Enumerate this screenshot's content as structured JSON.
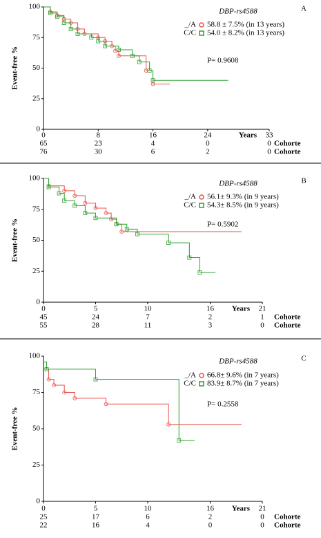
{
  "chart_data": [
    {
      "type": "step",
      "letter": "A",
      "title": "DBP-rs4588",
      "xlabel": "Years",
      "ylabel": "Event-free %",
      "pvalue": "P= 0.9608",
      "xlim": [
        0,
        33
      ],
      "xticks": [
        0,
        8,
        16,
        24,
        33
      ],
      "ylim": [
        0,
        100
      ],
      "yticks": [
        0,
        25,
        50,
        75,
        100
      ],
      "series": [
        {
          "name": "_/A",
          "color": "#e8504a",
          "legend_text": "58.8 ± 7.5% (in 13 years)",
          "risk_label": "Cohorte",
          "at_risk": [
            65,
            23,
            4,
            0,
            0
          ],
          "x": [
            0,
            1,
            2,
            3,
            4,
            5,
            6,
            8,
            9,
            10,
            10.5,
            11,
            15,
            16,
            18.5
          ],
          "values": [
            100,
            96,
            93,
            90,
            87,
            82,
            78,
            75,
            72,
            68,
            64,
            60,
            48,
            37,
            37
          ]
        },
        {
          "name": "C/C",
          "color": "#2ca02c",
          "legend_text": "54.0 ± 8.2% (in 13 years)",
          "risk_label": "Cohorte",
          "at_risk": [
            76,
            30,
            6,
            2,
            0
          ],
          "x": [
            0,
            1,
            2,
            3,
            4,
            5,
            7,
            8,
            9,
            11,
            13,
            14,
            15.5,
            16,
            27
          ],
          "values": [
            100,
            95,
            92,
            87,
            82,
            78,
            75,
            72,
            68,
            65,
            60,
            55,
            48,
            40,
            40
          ]
        }
      ]
    },
    {
      "type": "step",
      "letter": "B",
      "title": "DBP-rs4588",
      "xlabel": "Years",
      "ylabel": "Event-free %",
      "pvalue": "P= 0.5902",
      "xlim": [
        0,
        21
      ],
      "xticks": [
        0,
        5,
        10,
        16,
        21
      ],
      "ylim": [
        0,
        100
      ],
      "yticks": [
        0,
        25,
        50,
        75,
        100
      ],
      "series": [
        {
          "name": "_/A",
          "color": "#e8504a",
          "legend_text": "56.1± 9.3% (in 9 years)",
          "risk_label": "Cohorte",
          "at_risk": [
            45,
            24,
            7,
            2,
            1
          ],
          "x": [
            0,
            0.5,
            2,
            3,
            4,
            5,
            6,
            6.5,
            7,
            7.5,
            19
          ],
          "values": [
            100,
            94,
            90,
            86,
            80,
            76,
            72,
            67,
            63,
            57,
            57
          ]
        },
        {
          "name": "C/C",
          "color": "#2ca02c",
          "legend_text": "54.3± 8.5% (in 9 years)",
          "risk_label": "Cohorte",
          "at_risk": [
            55,
            28,
            11,
            3,
            0
          ],
          "x": [
            0,
            0.5,
            1.5,
            2,
            3,
            4,
            5,
            7,
            8,
            9,
            12,
            14,
            15,
            16.5
          ],
          "values": [
            100,
            93,
            88,
            82,
            78,
            72,
            68,
            63,
            59,
            55,
            48,
            36,
            24,
            24
          ]
        }
      ]
    },
    {
      "type": "step",
      "letter": "C",
      "title": "DBP-rs4588",
      "xlabel": "Years",
      "ylabel": "Event-free %",
      "pvalue": "P= 0.2558",
      "xlim": [
        0,
        21
      ],
      "xticks": [
        0,
        5,
        10,
        16,
        21
      ],
      "ylim": [
        0,
        100
      ],
      "yticks": [
        0,
        25,
        50,
        75,
        100
      ],
      "series": [
        {
          "name": "_/A",
          "color": "#e8504a",
          "legend_text": "66.8± 9.6% (in 7 years)",
          "risk_label": "Cohorte",
          "at_risk": [
            25,
            17,
            6,
            2,
            0
          ],
          "x": [
            0,
            0.5,
            1,
            2,
            3,
            6,
            12,
            19
          ],
          "values": [
            91,
            84,
            80,
            75,
            71,
            67,
            53,
            53
          ]
        },
        {
          "name": "C/C",
          "color": "#2ca02c",
          "legend_text": "83.9± 8.7% (in 7 years)",
          "risk_label": "Cohorte",
          "at_risk": [
            22,
            16,
            4,
            0,
            0
          ],
          "x": [
            0,
            0.3,
            5,
            13,
            14.5
          ],
          "values": [
            96,
            91,
            84,
            42,
            42
          ]
        }
      ]
    }
  ]
}
